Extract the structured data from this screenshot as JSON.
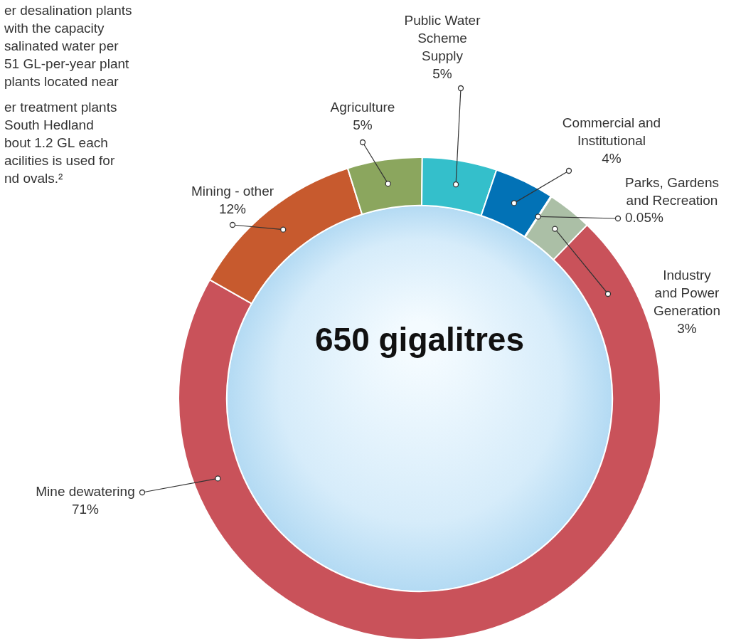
{
  "chart_data": {
    "type": "doughnut",
    "center_label": "650 gigalitres",
    "categories": [
      "Mine dewatering",
      "Mining - other",
      "Agriculture",
      "Public Water Scheme Supply",
      "Commercial and Institutional",
      "Parks, Gardens and Recreation",
      "Industry and Power Generation"
    ],
    "values": [
      71,
      12,
      5,
      5,
      4,
      0.05,
      3
    ],
    "value_labels": [
      "71%",
      "12%",
      "5%",
      "5%",
      "4%",
      "0.05%",
      "3%"
    ],
    "colors": [
      "#c9525a",
      "#c75a2e",
      "#8ba65e",
      "#34bfcb",
      "#0272b6",
      "#9ebfa0",
      "#abbfa6"
    ],
    "data_labels": true,
    "annotations": [
      [
        "er desalination plants",
        "with the capacity",
        "salinated water per",
        "51 GL-per-year plant",
        "plants located near"
      ],
      [
        "er treatment plants",
        "South Hedland",
        "bout 1.2 GL each",
        "acilities is used for",
        "nd ovals.²"
      ]
    ]
  }
}
